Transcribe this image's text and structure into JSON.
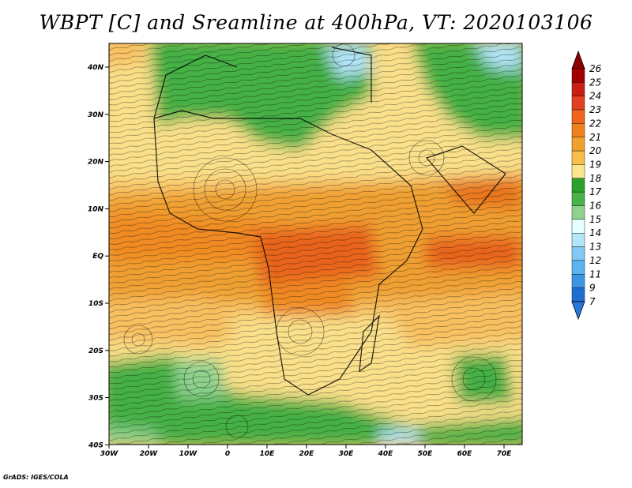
{
  "title": "WBPT [C] and Sreamline at 400hPa, VT: 2020103106",
  "footer": "GrADS: IGES/COLA",
  "map": {
    "lon_labels": [
      "30W",
      "20W",
      "10W",
      "0",
      "10E",
      "20E",
      "30E",
      "40E",
      "50E",
      "60E",
      "70E"
    ],
    "lat_labels": [
      "40N",
      "30N",
      "20N",
      "10N",
      "EQ",
      "10S",
      "20S",
      "30S",
      "40S"
    ],
    "lon_range": [
      -30,
      75
    ],
    "lat_range": [
      -40,
      45
    ]
  },
  "colorbar": {
    "labels": [
      "26",
      "25",
      "24",
      "23",
      "22",
      "21",
      "20",
      "19",
      "18",
      "17",
      "16",
      "15",
      "14",
      "13",
      "12",
      "11",
      "9",
      "7"
    ],
    "colors": [
      "#a00000",
      "#c81e14",
      "#e1411e",
      "#f0641e",
      "#f0821e",
      "#f0a02d",
      "#f8bf4b",
      "#fae68c",
      "#2ca02c",
      "#48b448",
      "#8ed28e",
      "#e6ffff",
      "#b4e6fa",
      "#82c8f0",
      "#5ab4f0",
      "#3c96e6",
      "#1e6ed2"
    ],
    "top_arrow_color": "#8c0000",
    "bottom_arrow_color": "#2878dc"
  }
}
